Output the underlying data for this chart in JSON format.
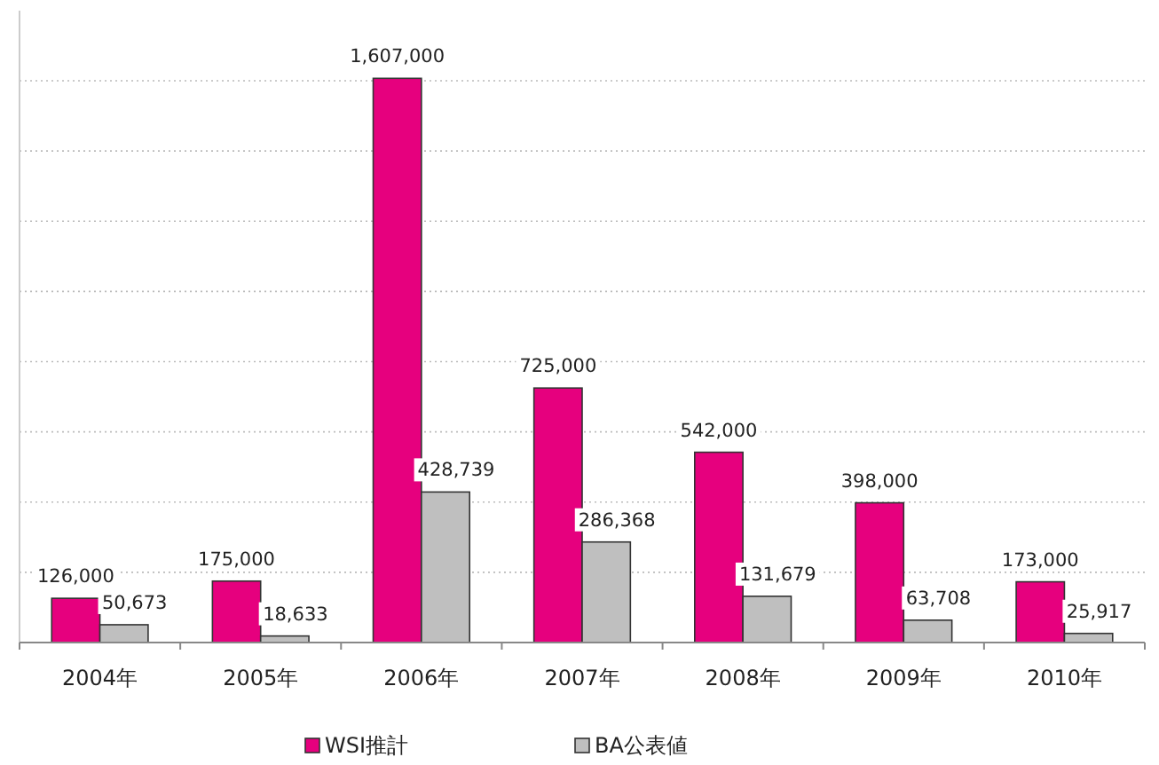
{
  "chart_data": {
    "type": "bar",
    "categories": [
      "2004年",
      "2005年",
      "2006年",
      "2007年",
      "2008年",
      "2009年",
      "2010年"
    ],
    "series": [
      {
        "name": "WSI推計",
        "color": "#e6007e",
        "values": [
          126000,
          175000,
          1607000,
          725000,
          542000,
          398000,
          173000
        ],
        "value_labels": [
          "126,000",
          "175,000",
          "1,607,000",
          "725,000",
          "542,000",
          "398,000",
          "173,000"
        ]
      },
      {
        "name": "BA公表値",
        "color": "#bfbfbf",
        "values": [
          50673,
          18633,
          428739,
          286368,
          131679,
          63708,
          25917
        ],
        "value_labels": [
          "50,673",
          "18,633",
          "428,739",
          "286,368",
          "131,679",
          "63,708",
          "25,917"
        ]
      }
    ],
    "grid": "y",
    "legend": "bottom",
    "tick_labels": "x"
  }
}
